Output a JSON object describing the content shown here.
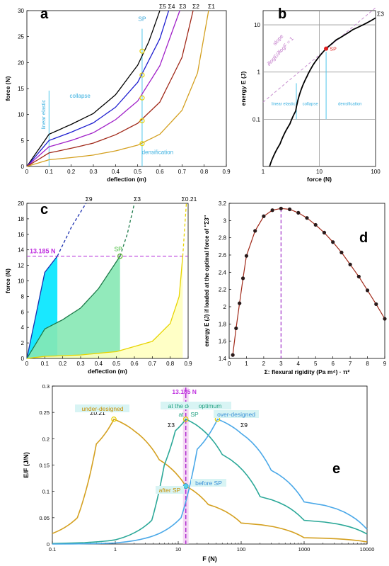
{
  "chart_data": [
    {
      "panel": "a",
      "type": "line",
      "xlabel": "deflection (m)",
      "ylabel": "force (N)",
      "xlim": [
        0,
        0.9
      ],
      "ylim": [
        0,
        30
      ],
      "xticks": [
        "0",
        "0.1",
        "0.2",
        "0.3",
        "0.4",
        "0.5",
        "0.6",
        "0.7",
        "0.8",
        "0.9"
      ],
      "yticks": [
        "0",
        "5",
        "10",
        "15",
        "20",
        "25",
        "30"
      ],
      "marker_label": "SP",
      "marker_x": 0.52,
      "elastic_x": 0.1,
      "regions": [
        "linear elastic",
        "collapse",
        "densification"
      ],
      "series": [
        {
          "name": "Σ5",
          "color": "#000000",
          "points": [
            [
              0,
              0
            ],
            [
              0.1,
              6.2
            ],
            [
              0.2,
              8.1
            ],
            [
              0.3,
              10.2
            ],
            [
              0.4,
              13.8
            ],
            [
              0.5,
              19.5
            ],
            [
              0.55,
              24.0
            ],
            [
              0.6,
              30.0
            ]
          ]
        },
        {
          "name": "Σ4",
          "color": "#1f1fd0",
          "points": [
            [
              0,
              0
            ],
            [
              0.1,
              5.0
            ],
            [
              0.2,
              6.6
            ],
            [
              0.3,
              8.4
            ],
            [
              0.4,
              11.4
            ],
            [
              0.5,
              16.2
            ],
            [
              0.6,
              24.6
            ],
            [
              0.64,
              30.0
            ]
          ]
        },
        {
          "name": "Σ3",
          "color": "#a020c8",
          "points": [
            [
              0,
              0
            ],
            [
              0.1,
              3.8
            ],
            [
              0.2,
              5.0
            ],
            [
              0.3,
              6.5
            ],
            [
              0.4,
              9.0
            ],
            [
              0.5,
              12.6
            ],
            [
              0.6,
              19.4
            ],
            [
              0.69,
              30.0
            ]
          ]
        },
        {
          "name": "Σ2",
          "color": "#a02818",
          "points": [
            [
              0,
              0
            ],
            [
              0.1,
              2.6
            ],
            [
              0.2,
              3.5
            ],
            [
              0.3,
              4.5
            ],
            [
              0.4,
              6.1
            ],
            [
              0.5,
              8.3
            ],
            [
              0.6,
              12.4
            ],
            [
              0.7,
              21.0
            ],
            [
              0.75,
              30.0
            ]
          ]
        },
        {
          "name": "Σ1",
          "color": "#d4a020",
          "points": [
            [
              0,
              0
            ],
            [
              0.1,
              1.3
            ],
            [
              0.2,
              1.7
            ],
            [
              0.3,
              2.2
            ],
            [
              0.4,
              3.0
            ],
            [
              0.5,
              4.1
            ],
            [
              0.6,
              6.2
            ],
            [
              0.7,
              10.8
            ],
            [
              0.77,
              18.0
            ],
            [
              0.82,
              30.0
            ]
          ]
        }
      ],
      "sp_points": [
        [
          0.52,
          22.2
        ],
        [
          0.52,
          17.6
        ],
        [
          0.52,
          13.2
        ],
        [
          0.52,
          8.8
        ],
        [
          0.52,
          4.4
        ]
      ]
    },
    {
      "panel": "b",
      "type": "line",
      "scale": "log-log",
      "xlabel": "force (N)",
      "ylabel": "energy E (J)",
      "xlim": [
        1,
        100
      ],
      "ylim": [
        0.01,
        20
      ],
      "xticks": [
        "1",
        "10",
        "100"
      ],
      "yticks": [
        "0.1",
        "1",
        "10"
      ],
      "series_label": "Σ3",
      "slope_label": "slope",
      "slope_eq": "∂logE/∂logF = 1",
      "sp_label": "SP",
      "sp_point": [
        13.2,
        3.14
      ],
      "regions": [
        "linear elastic",
        "collapse",
        "densification"
      ],
      "points": [
        [
          1.3,
          0.01
        ],
        [
          2,
          0.03
        ],
        [
          3,
          0.08
        ],
        [
          3.8,
          0.15
        ],
        [
          4.5,
          0.35
        ],
        [
          6,
          0.8
        ],
        [
          8,
          1.5
        ],
        [
          10.5,
          2.3
        ],
        [
          13.2,
          3.14
        ],
        [
          20,
          4.8
        ],
        [
          40,
          8.0
        ],
        [
          70,
          11.0
        ],
        [
          100,
          14.0
        ]
      ]
    },
    {
      "panel": "c",
      "type": "line",
      "xlabel": "deflection (m)",
      "ylabel": "force (N)",
      "xlim": [
        0,
        0.9
      ],
      "ylim": [
        0,
        20
      ],
      "xticks": [
        "0",
        "0.1",
        "0.2",
        "0.3",
        "0.4",
        "0.5",
        "0.6",
        "0.7",
        "0.8",
        "0.9"
      ],
      "yticks": [
        "0",
        "2",
        "4",
        "6",
        "8",
        "10",
        "12",
        "14",
        "16",
        "18",
        "20"
      ],
      "force_label": "13.185 N",
      "force_value": 13.185,
      "sp_label": "SP",
      "series": [
        {
          "name": "Σ9",
          "color": "#1a2fb0",
          "fill": "#00e5ff",
          "points": [
            [
              0,
              0
            ],
            [
              0.1,
              11.1
            ],
            [
              0.17,
              13.185
            ],
            [
              0.25,
              17.0
            ],
            [
              0.33,
              20.0
            ]
          ]
        },
        {
          "name": "Σ3",
          "color": "#1e7a4a",
          "fill": "#86e8b4",
          "points": [
            [
              0,
              0
            ],
            [
              0.1,
              3.8
            ],
            [
              0.2,
              5.0
            ],
            [
              0.3,
              6.5
            ],
            [
              0.4,
              9.0
            ],
            [
              0.52,
              13.185
            ],
            [
              0.56,
              16.0
            ],
            [
              0.6,
              20.0
            ]
          ]
        },
        {
          "name": "Σ0.21",
          "color": "#e8d400",
          "fill": "#ffffc0",
          "points": [
            [
              0,
              0
            ],
            [
              0.1,
              0.27
            ],
            [
              0.3,
              0.45
            ],
            [
              0.5,
              0.88
            ],
            [
              0.7,
              2.2
            ],
            [
              0.8,
              4.5
            ],
            [
              0.85,
              8.0
            ],
            [
              0.87,
              13.185
            ],
            [
              0.89,
              20.0
            ]
          ]
        }
      ]
    },
    {
      "panel": "d",
      "type": "line",
      "xlabel": "Σ: flexural rigidity (Pa m⁴) · π²",
      "ylabel": "energy E (J) if loaded at the optimal force of \"Σ3\"",
      "xlim": [
        0,
        9
      ],
      "ylim": [
        1.4,
        3.2
      ],
      "xticks": [
        "0",
        "1",
        "2",
        "3",
        "4",
        "5",
        "6",
        "7",
        "8",
        "9"
      ],
      "yticks": [
        "1.4",
        "1.6",
        "1.8",
        "2",
        "2.2",
        "2.4",
        "2.6",
        "2.8",
        "3",
        "3.2"
      ],
      "optimum_x": 3,
      "x": [
        0.21,
        0.4,
        0.6,
        0.8,
        1,
        1.5,
        2,
        2.5,
        3,
        3.5,
        4,
        4.5,
        5,
        5.5,
        6,
        6.5,
        7,
        7.5,
        8,
        8.5,
        9
      ],
      "y": [
        1.44,
        1.75,
        2.04,
        2.33,
        2.59,
        2.88,
        3.05,
        3.12,
        3.14,
        3.13,
        3.09,
        3.03,
        2.95,
        2.86,
        2.75,
        2.63,
        2.49,
        2.35,
        2.19,
        2.03,
        1.86
      ]
    },
    {
      "panel": "e",
      "type": "line",
      "scale": "log-x",
      "xlabel": "F (N)",
      "ylabel": "E/F (J/N)",
      "xlim": [
        0.1,
        10000
      ],
      "ylim": [
        0,
        0.3
      ],
      "xticks": [
        "0.1",
        "1",
        "10",
        "100",
        "1000",
        "10000"
      ],
      "yticks": [
        "0",
        "0.05",
        "0.1",
        "0.15",
        "0.2",
        "0.25",
        "0.3"
      ],
      "force_label": "13.185 N",
      "force_value": 13.185,
      "annotations": [
        "under-designed",
        "at the design",
        "optimum",
        "at",
        "SP",
        "over-designed",
        "after SP",
        "before SP"
      ],
      "series": [
        {
          "name": "Σ0.21",
          "color": "#d4a020",
          "points": [
            [
              0.1,
              0.02
            ],
            [
              0.25,
              0.05
            ],
            [
              0.5,
              0.19
            ],
            [
              0.95,
              0.237
            ],
            [
              2,
              0.215
            ],
            [
              5,
              0.16
            ],
            [
              13.185,
              0.11
            ],
            [
              30,
              0.075
            ],
            [
              100,
              0.04
            ],
            [
              1000,
              0.012
            ],
            [
              10000,
              0.004
            ]
          ]
        },
        {
          "name": "Σ3",
          "color": "#2ba898",
          "points": [
            [
              0.1,
              0.001
            ],
            [
              1,
              0.008
            ],
            [
              3.8,
              0.045
            ],
            [
              6,
              0.15
            ],
            [
              9,
              0.215
            ],
            [
              13.185,
              0.237
            ],
            [
              20,
              0.225
            ],
            [
              50,
              0.17
            ],
            [
              200,
              0.09
            ],
            [
              1000,
              0.045
            ],
            [
              10000,
              0.019
            ]
          ]
        },
        {
          "name": "Σ9",
          "color": "#4aa8e8",
          "points": [
            [
              0.1,
              0
            ],
            [
              1,
              0.002
            ],
            [
              5,
              0.02
            ],
            [
              11.1,
              0.05
            ],
            [
              20,
              0.18
            ],
            [
              42,
              0.237
            ],
            [
              100,
              0.21
            ],
            [
              300,
              0.14
            ],
            [
              1000,
              0.08
            ],
            [
              10000,
              0.028
            ]
          ]
        }
      ],
      "optima": [
        [
          0.95,
          0.237
        ],
        [
          13.185,
          0.237
        ],
        [
          42,
          0.237
        ]
      ],
      "crossing": [
        13.185,
        0.11
      ]
    }
  ],
  "panel_letters": [
    "a",
    "b",
    "c",
    "d",
    "e"
  ]
}
